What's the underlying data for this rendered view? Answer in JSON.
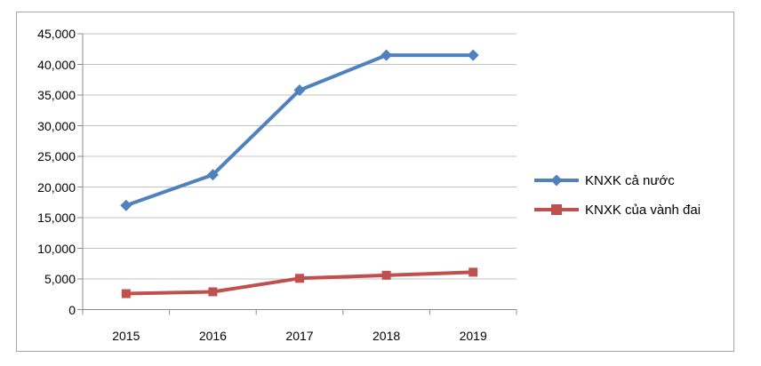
{
  "chart_data": {
    "type": "line",
    "x": [
      "2015",
      "2016",
      "2017",
      "2018",
      "2019"
    ],
    "series": [
      {
        "name": "KNXK cả nước",
        "color": "#4F81BD",
        "marker": "diamond",
        "values": [
          17000,
          22000,
          35800,
          41500,
          41500
        ]
      },
      {
        "name": "KNXK của vành đai",
        "color": "#C0504D",
        "marker": "square",
        "values": [
          2600,
          2900,
          5100,
          5600,
          6100
        ]
      }
    ],
    "title": "",
    "xlabel": "",
    "ylabel": "",
    "ylim": [
      0,
      45000
    ],
    "ytick_step": 5000,
    "ytick_labels": [
      "0",
      "5,000",
      "10,000",
      "15,000",
      "20,000",
      "25,000",
      "30,000",
      "35,000",
      "40,000",
      "45,000"
    ],
    "grid": true,
    "legend_position": "right",
    "colors": {
      "background": "#ffffff",
      "frame_border": "#a6a6a6",
      "gridline": "#c3c3c3",
      "axis": "#8c8c8c",
      "text": "#000000"
    }
  }
}
